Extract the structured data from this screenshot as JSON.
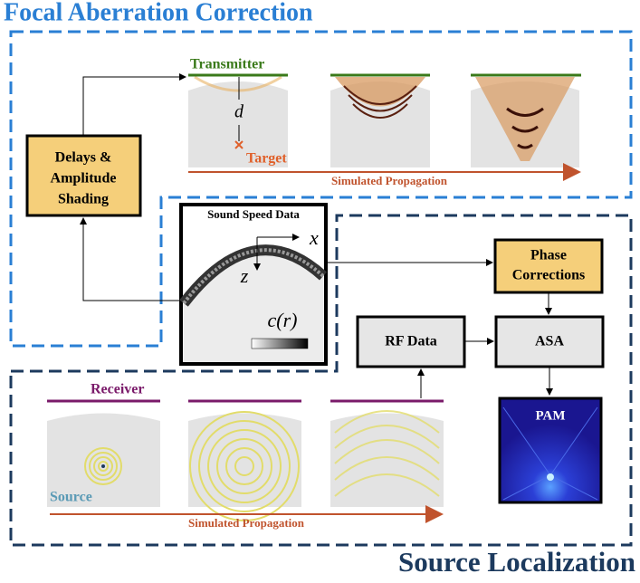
{
  "focal_section": {
    "title": "Focal Aberration Correction",
    "transmitter_label": "Transmitter",
    "distance_label": "d",
    "target_label": "Target",
    "propagation_label": "Simulated Propagation"
  },
  "nodes": [
    {
      "lines": [
        "Delays &",
        "Amplitude",
        "Shading"
      ]
    },
    {
      "title": "Sound Speed Data",
      "x_axis": "x",
      "z_axis": "z",
      "colorbar_label": "c(r)"
    },
    {
      "lines": [
        "Phase",
        "Corrections"
      ]
    },
    {
      "lines": [
        "RF Data"
      ]
    },
    {
      "lines": [
        "ASA"
      ]
    },
    {
      "lines": [
        "PAM"
      ]
    }
  ],
  "localization_section": {
    "title": "Source Localization",
    "receiver_label": "Receiver",
    "source_label": "Source",
    "propagation_label": "Simulated Propagation"
  }
}
